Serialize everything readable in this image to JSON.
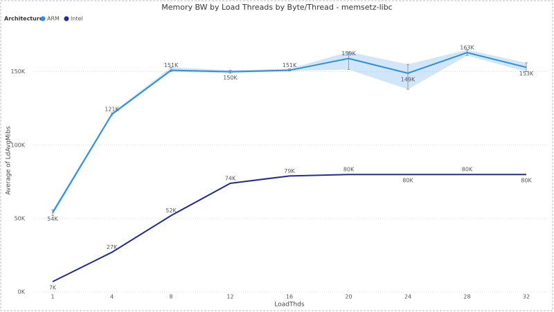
{
  "chart_data": {
    "type": "line",
    "title": "Memory BW by Load Threads by Byte/Thread - memsetz-libc",
    "legend_title": "Architecture",
    "x_label": "LoadThds",
    "y_label": "Average of LdAvgMibs",
    "categories": [
      "1",
      "4",
      "8",
      "12",
      "16",
      "20",
      "24",
      "28",
      "32"
    ],
    "ylim": [
      0,
      180000
    ],
    "yticks": [
      {
        "value": 0,
        "label": "0K"
      },
      {
        "value": 50000,
        "label": "50K"
      },
      {
        "value": 100000,
        "label": "100K"
      },
      {
        "value": 150000,
        "label": "150K"
      }
    ],
    "grid": true,
    "legend_position": "top-left",
    "series": [
      {
        "name": "ARM",
        "color": "#2d8ee0",
        "values": [
          54000,
          121000,
          151000,
          150000,
          151000,
          159000,
          149000,
          163000,
          153000
        ],
        "value_labels": [
          "54K",
          "121K",
          "151K",
          "150K",
          "151K",
          "159K",
          "149K",
          "163K",
          "153K"
        ],
        "lower": [
          52000,
          120000,
          150000,
          149000,
          150500,
          151500,
          138000,
          161000,
          150000
        ],
        "upper": [
          56000,
          122000,
          153000,
          151000,
          152000,
          163500,
          155000,
          165000,
          156000
        ]
      },
      {
        "name": "Intel",
        "color": "#1f2b96",
        "values": [
          7000,
          27000,
          52000,
          74000,
          79000,
          80000,
          80000,
          80000,
          80000
        ],
        "value_labels": [
          "7K",
          "27K",
          "52K",
          "74K",
          "79K",
          "80K",
          "80K",
          "80K",
          "80K"
        ]
      }
    ]
  }
}
